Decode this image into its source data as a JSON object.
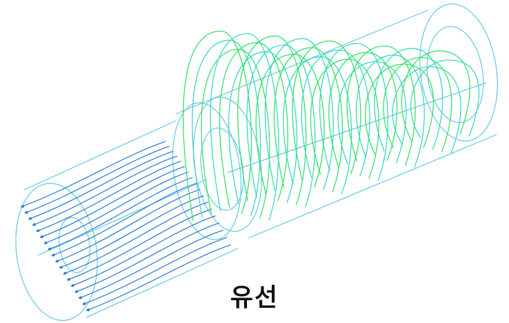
{
  "caption": "유선",
  "colors": {
    "geometry": "#5ec8e6",
    "inlet_streamline": "#2f7fd6",
    "swirl_streamline_a": "#35e06a",
    "swirl_streamline_b": "#3ad8c0",
    "background": "#ffffff"
  }
}
